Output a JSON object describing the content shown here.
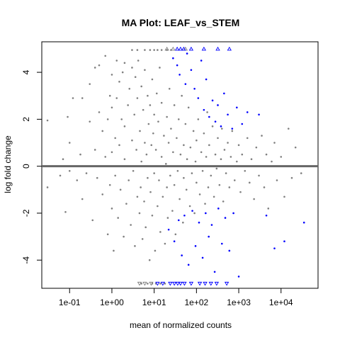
{
  "chart_data": {
    "type": "scatter",
    "title": "MA Plot: LEAF_vs_STEM",
    "xlabel": "mean of normalized counts",
    "ylabel": "log fold change",
    "x_scale": "log10",
    "xlim": [
      0.022,
      75000
    ],
    "ylim": [
      -5.2,
      5.3
    ],
    "x_ticks": [
      {
        "value": 0.1,
        "label": "1e-01"
      },
      {
        "value": 1,
        "label": "1e+00"
      },
      {
        "value": 10,
        "label": "1e+01"
      },
      {
        "value": 100,
        "label": "1e+02"
      },
      {
        "value": 1000,
        "label": "1e+03"
      },
      {
        "value": 10000,
        "label": "1e+04"
      }
    ],
    "y_ticks": [
      {
        "value": -4,
        "label": "-4"
      },
      {
        "value": -2,
        "label": "-2"
      },
      {
        "value": 0,
        "label": "0"
      },
      {
        "value": 2,
        "label": "2"
      },
      {
        "value": 4,
        "label": "4"
      }
    ],
    "reference_line": {
      "y": 0,
      "color": "#666666"
    },
    "grid": false,
    "legend": "none",
    "colors": {
      "nonsignificant": "#808080",
      "significant": "#0000FF",
      "reference_line": "#666666"
    },
    "series": [
      {
        "color": "#808080",
        "marker": "point",
        "points": [
          [
            0.03,
            -0.9
          ],
          [
            0.03,
            1.95
          ],
          [
            0.05,
            0.0
          ],
          [
            0.06,
            -0.4
          ],
          [
            0.07,
            0.3
          ],
          [
            0.08,
            -1.95
          ],
          [
            0.09,
            2.1
          ],
          [
            0.1,
            -0.2
          ],
          [
            0.1,
            1.0
          ],
          [
            0.12,
            2.9
          ],
          [
            0.15,
            -0.6
          ],
          [
            0.18,
            0.5
          ],
          [
            0.2,
            -1.4
          ],
          [
            0.2,
            2.9
          ],
          [
            0.25,
            -0.3
          ],
          [
            0.3,
            1.9
          ],
          [
            0.3,
            3.5
          ],
          [
            0.35,
            -2.3
          ],
          [
            0.4,
            0.7
          ],
          [
            0.4,
            4.2
          ],
          [
            0.45,
            -0.5
          ],
          [
            0.5,
            2.3
          ],
          [
            0.5,
            4.3
          ],
          [
            0.6,
            -1.2
          ],
          [
            0.6,
            1.5
          ],
          [
            0.7,
            0.4
          ],
          [
            0.7,
            4.7
          ],
          [
            0.8,
            -2.9
          ],
          [
            0.8,
            2.0
          ],
          [
            0.9,
            -0.8
          ],
          [
            0.9,
            3.0
          ],
          [
            1.0,
            -1.8
          ],
          [
            1.0,
            0.6
          ],
          [
            1.0,
            2.5
          ],
          [
            1.0,
            3.9
          ],
          [
            1.1,
            -3.6
          ],
          [
            1.2,
            1.2
          ],
          [
            1.2,
            -0.4
          ],
          [
            1.3,
            2.9
          ],
          [
            1.3,
            4.5
          ],
          [
            1.4,
            -2.2
          ],
          [
            1.5,
            0.9
          ],
          [
            1.5,
            3.6
          ],
          [
            1.6,
            -1.0
          ],
          [
            1.7,
            2.0
          ],
          [
            1.8,
            4.0
          ],
          [
            1.9,
            -3.0
          ],
          [
            2.0,
            0.3
          ],
          [
            2.0,
            1.7
          ],
          [
            2.0,
            4.4
          ],
          [
            2.2,
            -1.6
          ],
          [
            2.4,
            2.6
          ],
          [
            2.5,
            -0.6
          ],
          [
            2.6,
            3.3
          ],
          [
            2.8,
            -2.5
          ],
          [
            3.0,
            1.1
          ],
          [
            3.0,
            4.2
          ],
          [
            3.2,
            -0.2
          ],
          [
            3.4,
            2.2
          ],
          [
            3.5,
            -3.4
          ],
          [
            3.6,
            3.8
          ],
          [
            3.8,
            0.7
          ],
          [
            4.0,
            -1.3
          ],
          [
            4.0,
            2.9
          ],
          [
            4.2,
            4.5
          ],
          [
            4.5,
            -2.0
          ],
          [
            4.6,
            1.5
          ],
          [
            4.8,
            -0.9
          ],
          [
            5.0,
            3.4
          ],
          [
            5.0,
            0.2
          ],
          [
            5.3,
            -3.1
          ],
          [
            5.5,
            2.4
          ],
          [
            5.8,
            -1.5
          ],
          [
            6.0,
            1.0
          ],
          [
            6.0,
            4.1
          ],
          [
            6.3,
            -2.6
          ],
          [
            6.6,
            0.5
          ],
          [
            7.0,
            3.0
          ],
          [
            7.0,
            -0.5
          ],
          [
            7.4,
            1.8
          ],
          [
            7.8,
            -4.0
          ],
          [
            8.0,
            2.6
          ],
          [
            8.2,
            -1.1
          ],
          [
            8.6,
            0.9
          ],
          [
            9.0,
            3.7
          ],
          [
            9.0,
            -2.1
          ],
          [
            9.5,
            1.4
          ],
          [
            10.0,
            -0.3
          ],
          [
            10.0,
            2.2
          ],
          [
            10.5,
            -3.6
          ],
          [
            11.0,
            0.7
          ],
          [
            11.5,
            3.1
          ],
          [
            12.0,
            -1.7
          ],
          [
            12.5,
            1.9
          ],
          [
            13.0,
            -0.6
          ],
          [
            13.5,
            4.2
          ],
          [
            14.0,
            -2.8
          ],
          [
            15.0,
            0.4
          ],
          [
            15.0,
            2.7
          ],
          [
            16.0,
            -1.3
          ],
          [
            17.0,
            1.3
          ],
          [
            18.0,
            -3.3
          ],
          [
            19.0,
            0.1
          ],
          [
            20.0,
            2.1
          ],
          [
            20.0,
            -0.9
          ],
          [
            21.0,
            -2.2
          ],
          [
            22.0,
            1.0
          ],
          [
            23.0,
            3.3
          ],
          [
            24.0,
            -0.4
          ],
          [
            25.0,
            1.6
          ],
          [
            27.0,
            -1.9
          ],
          [
            28.0,
            0.6
          ],
          [
            30.0,
            2.6
          ],
          [
            30.0,
            -0.8
          ],
          [
            32.0,
            -2.9
          ],
          [
            34.0,
            1.2
          ],
          [
            36.0,
            -0.2
          ],
          [
            38.0,
            2.0
          ],
          [
            40.0,
            -1.4
          ],
          [
            42.0,
            0.5
          ],
          [
            45.0,
            3.0
          ],
          [
            48.0,
            -2.4
          ],
          [
            50.0,
            0.9
          ],
          [
            50.0,
            -0.5
          ],
          [
            55.0,
            1.8
          ],
          [
            58.0,
            -1.0
          ],
          [
            60.0,
            0.3
          ],
          [
            65.0,
            2.5
          ],
          [
            70.0,
            -1.7
          ],
          [
            72.0,
            0.8
          ],
          [
            78.0,
            -0.3
          ],
          [
            85.0,
            1.5
          ],
          [
            90.0,
            -2.0
          ],
          [
            95.0,
            0.2
          ],
          [
            100.0,
            1.1
          ],
          [
            100.0,
            -0.7
          ],
          [
            110.0,
            2.0
          ],
          [
            120.0,
            -1.2
          ],
          [
            130.0,
            0.6
          ],
          [
            140.0,
            -0.2
          ],
          [
            150.0,
            1.4
          ],
          [
            160.0,
            -1.6
          ],
          [
            170.0,
            0.4
          ],
          [
            180.0,
            2.3
          ],
          [
            190.0,
            -0.9
          ],
          [
            200.0,
            0.9
          ],
          [
            220.0,
            -0.4
          ],
          [
            240.0,
            1.7
          ],
          [
            260.0,
            -1.3
          ],
          [
            280.0,
            0.5
          ],
          [
            300.0,
            -0.1
          ],
          [
            320.0,
            1.2
          ],
          [
            350.0,
            -0.8
          ],
          [
            380.0,
            0.3
          ],
          [
            400.0,
            1.6
          ],
          [
            430.0,
            -1.5
          ],
          [
            460.0,
            0.7
          ],
          [
            500.0,
            -0.3
          ],
          [
            550.0,
            1.0
          ],
          [
            600.0,
            -0.9
          ],
          [
            650.0,
            0.4
          ],
          [
            700.0,
            1.5
          ],
          [
            800.0,
            -0.6
          ],
          [
            900.0,
            0.2
          ],
          [
            1000.0,
            0.9
          ],
          [
            1100.0,
            -1.1
          ],
          [
            1200.0,
            0.5
          ],
          [
            1400.0,
            -0.2
          ],
          [
            1600.0,
            1.2
          ],
          [
            1800.0,
            -0.7
          ],
          [
            2000.0,
            0.3
          ],
          [
            2300.0,
            -1.4
          ],
          [
            2600.0,
            0.8
          ],
          [
            3000.0,
            -0.4
          ],
          [
            3500.0,
            1.3
          ],
          [
            4000.0,
            -0.9
          ],
          [
            4500.0,
            0.5
          ],
          [
            5000.0,
            -1.8
          ],
          [
            6000.0,
            0.2
          ],
          [
            7000.0,
            1.0
          ],
          [
            8000.0,
            -0.6
          ],
          [
            10000.0,
            0.4
          ],
          [
            12000.0,
            -1.3
          ],
          [
            15000.0,
            1.6
          ],
          [
            18000.0,
            -0.5
          ],
          [
            22000.0,
            0.8
          ],
          [
            30000.0,
            -0.3
          ],
          [
            3.0,
            4.95
          ],
          [
            4.0,
            4.95
          ],
          [
            6.0,
            4.95
          ],
          [
            8.0,
            4.95
          ],
          [
            10.0,
            4.95
          ],
          [
            12.0,
            4.95
          ],
          [
            15.0,
            4.95
          ],
          [
            20.0,
            4.95
          ],
          [
            25.0,
            4.95
          ],
          [
            5.0,
            -5.0
          ],
          [
            7.0,
            -5.0
          ],
          [
            9.0,
            -5.0
          ],
          [
            11.0,
            -5.0
          ],
          [
            14.0,
            -5.0
          ],
          [
            18.0,
            -5.0
          ],
          [
            0.04,
            0.0
          ],
          [
            0.2,
            0.0
          ],
          [
            1.0,
            0.0
          ],
          [
            5.0,
            0.0
          ],
          [
            20.0,
            0.0
          ],
          [
            80.0,
            0.0
          ],
          [
            300.0,
            0.0
          ],
          [
            2000.0,
            0.0
          ]
        ]
      },
      {
        "color": "#0000FF",
        "marker": "point",
        "points": [
          [
            28.0,
            4.6
          ],
          [
            35.0,
            4.3
          ],
          [
            40.0,
            3.9
          ],
          [
            55.0,
            3.5
          ],
          [
            60.0,
            4.8
          ],
          [
            75.0,
            4.1
          ],
          [
            90.0,
            3.3
          ],
          [
            110.0,
            2.9
          ],
          [
            130.0,
            4.5
          ],
          [
            150.0,
            2.4
          ],
          [
            170.0,
            3.7
          ],
          [
            200.0,
            2.1
          ],
          [
            240.0,
            2.8
          ],
          [
            280.0,
            1.9
          ],
          [
            320.0,
            2.6
          ],
          [
            380.0,
            1.7
          ],
          [
            450.0,
            3.1
          ],
          [
            550.0,
            2.2
          ],
          [
            700.0,
            1.6
          ],
          [
            900.0,
            2.5
          ],
          [
            1200.0,
            1.8
          ],
          [
            1600.0,
            2.3
          ],
          [
            3000.0,
            2.2
          ],
          [
            22.0,
            -2.7
          ],
          [
            30.0,
            -3.2
          ],
          [
            38.0,
            -2.3
          ],
          [
            45.0,
            -3.8
          ],
          [
            52.0,
            -2.1
          ],
          [
            65.0,
            -4.2
          ],
          [
            80.0,
            -1.9
          ],
          [
            95.0,
            -3.4
          ],
          [
            115.0,
            -2.4
          ],
          [
            140.0,
            -3.9
          ],
          [
            165.0,
            -2.0
          ],
          [
            195.0,
            -3.0
          ],
          [
            230.0,
            -2.5
          ],
          [
            270.0,
            -4.5
          ],
          [
            330.0,
            -1.8
          ],
          [
            400.0,
            -3.3
          ],
          [
            480.0,
            -2.2
          ],
          [
            600.0,
            -3.6
          ],
          [
            750.0,
            -2.0
          ],
          [
            1000.0,
            -4.7
          ],
          [
            4500.0,
            -2.1
          ],
          [
            7000.0,
            -3.5
          ],
          [
            12000.0,
            -3.2
          ],
          [
            35000.0,
            -2.4
          ]
        ]
      },
      {
        "color": "#808080",
        "marker": "triangle-up",
        "points": [
          [
            20.0,
            5.0
          ],
          [
            28.0,
            5.0
          ],
          [
            55.0,
            5.0
          ]
        ]
      },
      {
        "color": "#0000FF",
        "marker": "triangle-up",
        "points": [
          [
            35.0,
            5.0
          ],
          [
            42.0,
            5.0
          ],
          [
            50.0,
            5.0
          ],
          [
            75.0,
            5.0
          ],
          [
            150.0,
            5.0
          ],
          [
            320.0,
            5.0
          ],
          [
            600.0,
            5.0
          ]
        ]
      },
      {
        "color": "#808080",
        "marker": "triangle-down",
        "points": [
          [
            4.5,
            -5.0
          ],
          [
            6.0,
            -5.0
          ],
          [
            8.5,
            -5.0
          ]
        ]
      },
      {
        "color": "#0000FF",
        "marker": "triangle-down",
        "points": [
          [
            12.0,
            -5.0
          ],
          [
            16.0,
            -5.0
          ],
          [
            24.0,
            -5.0
          ],
          [
            30.0,
            -5.0
          ],
          [
            36.0,
            -5.0
          ],
          [
            42.0,
            -5.0
          ],
          [
            52.0,
            -5.0
          ],
          [
            75.0,
            -5.0
          ],
          [
            120.0,
            -5.0
          ],
          [
            160.0,
            -5.0
          ],
          [
            220.0,
            -5.0
          ],
          [
            300.0,
            -5.0
          ],
          [
            520.0,
            -5.0
          ]
        ]
      }
    ]
  }
}
